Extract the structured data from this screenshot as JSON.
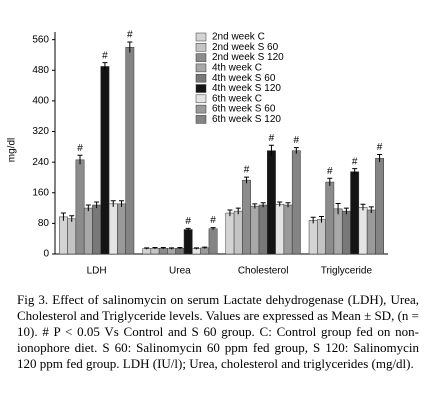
{
  "chart_data": {
    "type": "bar",
    "y_label": "mg/dl",
    "categories": [
      "LDH",
      "Urea",
      "Cholesterol",
      "Triglyceride"
    ],
    "ylim": [
      0,
      580
    ],
    "yticks": [
      0,
      80,
      160,
      240,
      320,
      400,
      480,
      560
    ],
    "series": [
      {
        "name": "2nd week C",
        "color": "#d4d4d4",
        "values": [
          97,
          14,
          107,
          88
        ],
        "errors": [
          10,
          2,
          8,
          8
        ],
        "markers": [
          null,
          null,
          null,
          null
        ]
      },
      {
        "name": "2nd week S 60",
        "color": "#c4c4c4",
        "values": [
          92,
          15,
          112,
          90
        ],
        "errors": [
          8,
          2,
          8,
          8
        ],
        "markers": [
          null,
          null,
          null,
          null
        ]
      },
      {
        "name": "2nd week S 120",
        "color": "#8c8c8c",
        "values": [
          246,
          15,
          193,
          188
        ],
        "errors": [
          12,
          2,
          8,
          10
        ],
        "markers": [
          "#",
          null,
          "#",
          "#"
        ]
      },
      {
        "name": "4th week C",
        "color": "#a8a8a8",
        "values": [
          120,
          14,
          125,
          118
        ],
        "errors": [
          8,
          2,
          6,
          14
        ],
        "markers": [
          null,
          null,
          null,
          null
        ]
      },
      {
        "name": "4th week S 60",
        "color": "#787878",
        "values": [
          128,
          15,
          128,
          112
        ],
        "errors": [
          8,
          2,
          6,
          8
        ],
        "markers": [
          null,
          null,
          null,
          null
        ]
      },
      {
        "name": "4th week S 120",
        "color": "#141414",
        "values": [
          490,
          64,
          270,
          215
        ],
        "errors": [
          10,
          3,
          14,
          8
        ],
        "markers": [
          "#",
          "#",
          "#",
          "#"
        ]
      },
      {
        "name": "6th week C",
        "color": "#e4e4e4",
        "values": [
          131,
          14,
          130,
          122
        ],
        "errors": [
          8,
          2,
          6,
          8
        ],
        "markers": [
          null,
          null,
          null,
          null
        ]
      },
      {
        "name": "6th week S 60",
        "color": "#9a9a9a",
        "values": [
          131,
          16,
          128,
          115
        ],
        "errors": [
          8,
          2,
          6,
          8
        ],
        "markers": [
          null,
          null,
          null,
          null
        ]
      },
      {
        "name": "6th week S 120",
        "color": "#848484",
        "values": [
          540,
          66,
          270,
          250
        ],
        "errors": [
          14,
          3,
          8,
          10
        ],
        "markers": [
          "#",
          "#",
          "#",
          "#"
        ]
      }
    ]
  },
  "caption": "Fig 3. Effect of salinomycin on serum Lactate dehydrogenase (LDH), Urea, Cholesterol and Triglyceride levels. Values are expressed as Mean ± SD, (n = 10). # P < 0.05 Vs Control and S 60 group. C: Control group fed on non-ionophore diet. S 60: Salinomycin 60 ppm fed group, S 120: Salinomycin 120 ppm fed group. LDH (IU/l); Urea, cholesterol and triglycerides (mg/dl)."
}
